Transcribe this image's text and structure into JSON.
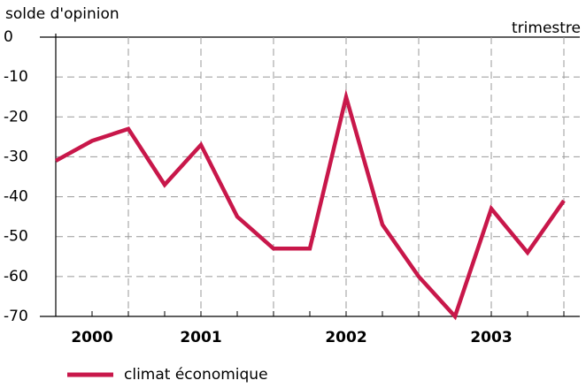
{
  "chart_data": {
    "type": "line",
    "y_label": "solde d'opinion",
    "x_label": "trimestre",
    "categories": [
      null,
      "2000",
      null,
      null,
      "2001",
      null,
      null,
      null,
      "2002",
      null,
      null,
      null,
      "2003",
      null,
      null
    ],
    "series": [
      {
        "name": "climat économique",
        "color": "#c8174a",
        "values": [
          -31,
          -26,
          -23,
          -37,
          -27,
          -45,
          -53,
          -53,
          -15,
          -47,
          -60,
          -70,
          -43,
          -54,
          -41
        ]
      }
    ],
    "ylim": [
      -70,
      0
    ],
    "yticks": [
      0,
      -10,
      -20,
      -30,
      -40,
      -50,
      -60,
      -70
    ],
    "grid": true
  }
}
